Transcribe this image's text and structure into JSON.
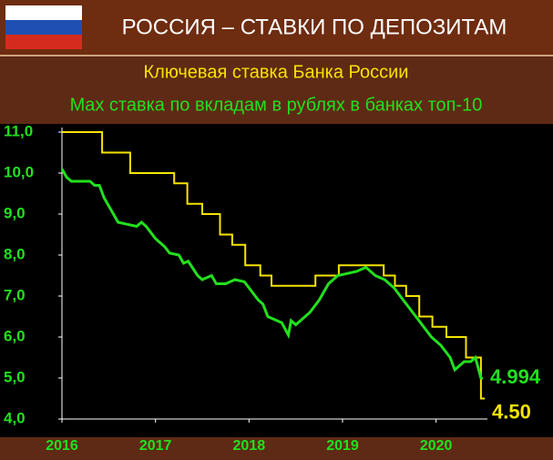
{
  "chart_data": {
    "type": "line",
    "title": "РОССИЯ – СТАВКИ ПО ДЕПОЗИТАМ",
    "xlim": [
      2016,
      2020.5
    ],
    "xticks": [
      2016,
      2017,
      2018,
      2019,
      2020
    ],
    "ylim": [
      4,
      11
    ],
    "yticks": [
      {
        "value": 4,
        "label": "4,0"
      },
      {
        "value": 5,
        "label": "5,0"
      },
      {
        "value": 6,
        "label": "6,0"
      },
      {
        "value": 7,
        "label": "7,0"
      },
      {
        "value": 8,
        "label": "8,0"
      },
      {
        "value": 9,
        "label": "9,0"
      },
      {
        "value": 10,
        "label": "10,0"
      },
      {
        "value": 11,
        "label": "11,0"
      }
    ],
    "series": [
      {
        "name": "Ключевая ставка Банка России",
        "color": "#f5e400",
        "x": [
          2016,
          2016.43,
          2016.43,
          2016.73,
          2016.73,
          2017.2,
          2017.2,
          2017.34,
          2017.34,
          2017.5,
          2017.5,
          2017.69,
          2017.69,
          2017.82,
          2017.82,
          2017.96,
          2017.96,
          2018.12,
          2018.12,
          2018.24,
          2018.24,
          2018.71,
          2018.71,
          2018.96,
          2018.96,
          2019.44,
          2019.44,
          2019.56,
          2019.56,
          2019.68,
          2019.68,
          2019.82,
          2019.82,
          2019.96,
          2019.96,
          2020.11,
          2020.11,
          2020.32,
          2020.32,
          2020.48,
          2020.48,
          2020.52
        ],
        "values": [
          11,
          11,
          10.5,
          10.5,
          10,
          10,
          9.75,
          9.75,
          9.25,
          9.25,
          9,
          9,
          8.5,
          8.5,
          8.25,
          8.25,
          7.75,
          7.75,
          7.5,
          7.5,
          7.25,
          7.25,
          7.5,
          7.5,
          7.75,
          7.75,
          7.5,
          7.5,
          7.25,
          7.25,
          7,
          7,
          6.5,
          6.5,
          6.25,
          6.25,
          6,
          6,
          5.5,
          5.5,
          4.5,
          4.5
        ],
        "value_labels": [
          null,
          null,
          null,
          null,
          null,
          null,
          null,
          null,
          null,
          null,
          null,
          null,
          null,
          null,
          null,
          null,
          null,
          null,
          null,
          null,
          null,
          null,
          null,
          null,
          null,
          null,
          null,
          null,
          null,
          null,
          null,
          null,
          null,
          null,
          null,
          null,
          null,
          null,
          null,
          null,
          null,
          "4.50"
        ]
      },
      {
        "name": "Max ставка по вкладам в рублях в банках топ-10",
        "color": "#22e01e",
        "x": [
          2016,
          2016.05,
          2016.1,
          2016.2,
          2016.3,
          2016.35,
          2016.4,
          2016.45,
          2016.5,
          2016.55,
          2016.6,
          2016.7,
          2016.8,
          2016.85,
          2016.9,
          2017,
          2017.1,
          2017.15,
          2017.25,
          2017.3,
          2017.35,
          2017.45,
          2017.5,
          2017.6,
          2017.65,
          2017.75,
          2017.85,
          2017.95,
          2018,
          2018.1,
          2018.15,
          2018.2,
          2018.3,
          2018.35,
          2018.42,
          2018.45,
          2018.5,
          2018.55,
          2018.65,
          2018.75,
          2018.85,
          2018.95,
          2019.05,
          2019.15,
          2019.25,
          2019.35,
          2019.45,
          2019.55,
          2019.65,
          2019.75,
          2019.85,
          2019.95,
          2020.05,
          2020.15,
          2020.2,
          2020.3,
          2020.37,
          2020.42,
          2020.48,
          2020.5
        ],
        "values": [
          10.1,
          9.9,
          9.8,
          9.8,
          9.8,
          9.7,
          9.7,
          9.4,
          9.2,
          9,
          8.8,
          8.75,
          8.7,
          8.8,
          8.7,
          8.4,
          8.2,
          8.05,
          8,
          7.8,
          7.85,
          7.5,
          7.4,
          7.5,
          7.3,
          7.3,
          7.4,
          7.35,
          7.2,
          6.9,
          6.8,
          6.5,
          6.4,
          6.35,
          6.05,
          6.4,
          6.3,
          6.4,
          6.6,
          6.9,
          7.3,
          7.5,
          7.55,
          7.6,
          7.7,
          7.5,
          7.4,
          7.2,
          6.9,
          6.6,
          6.3,
          6,
          5.8,
          5.5,
          5.2,
          5.4,
          5.4,
          5.5,
          5,
          4.994
        ],
        "value_labels": [
          null,
          null,
          null,
          null,
          null,
          null,
          null,
          null,
          null,
          null,
          null,
          null,
          null,
          null,
          null,
          null,
          null,
          null,
          null,
          null,
          null,
          null,
          null,
          null,
          null,
          null,
          null,
          null,
          null,
          null,
          null,
          null,
          null,
          null,
          null,
          null,
          null,
          null,
          null,
          null,
          null,
          null,
          null,
          null,
          null,
          null,
          null,
          null,
          null,
          null,
          null,
          null,
          null,
          null,
          null,
          null,
          null,
          null,
          null,
          "4.994"
        ]
      }
    ]
  }
}
